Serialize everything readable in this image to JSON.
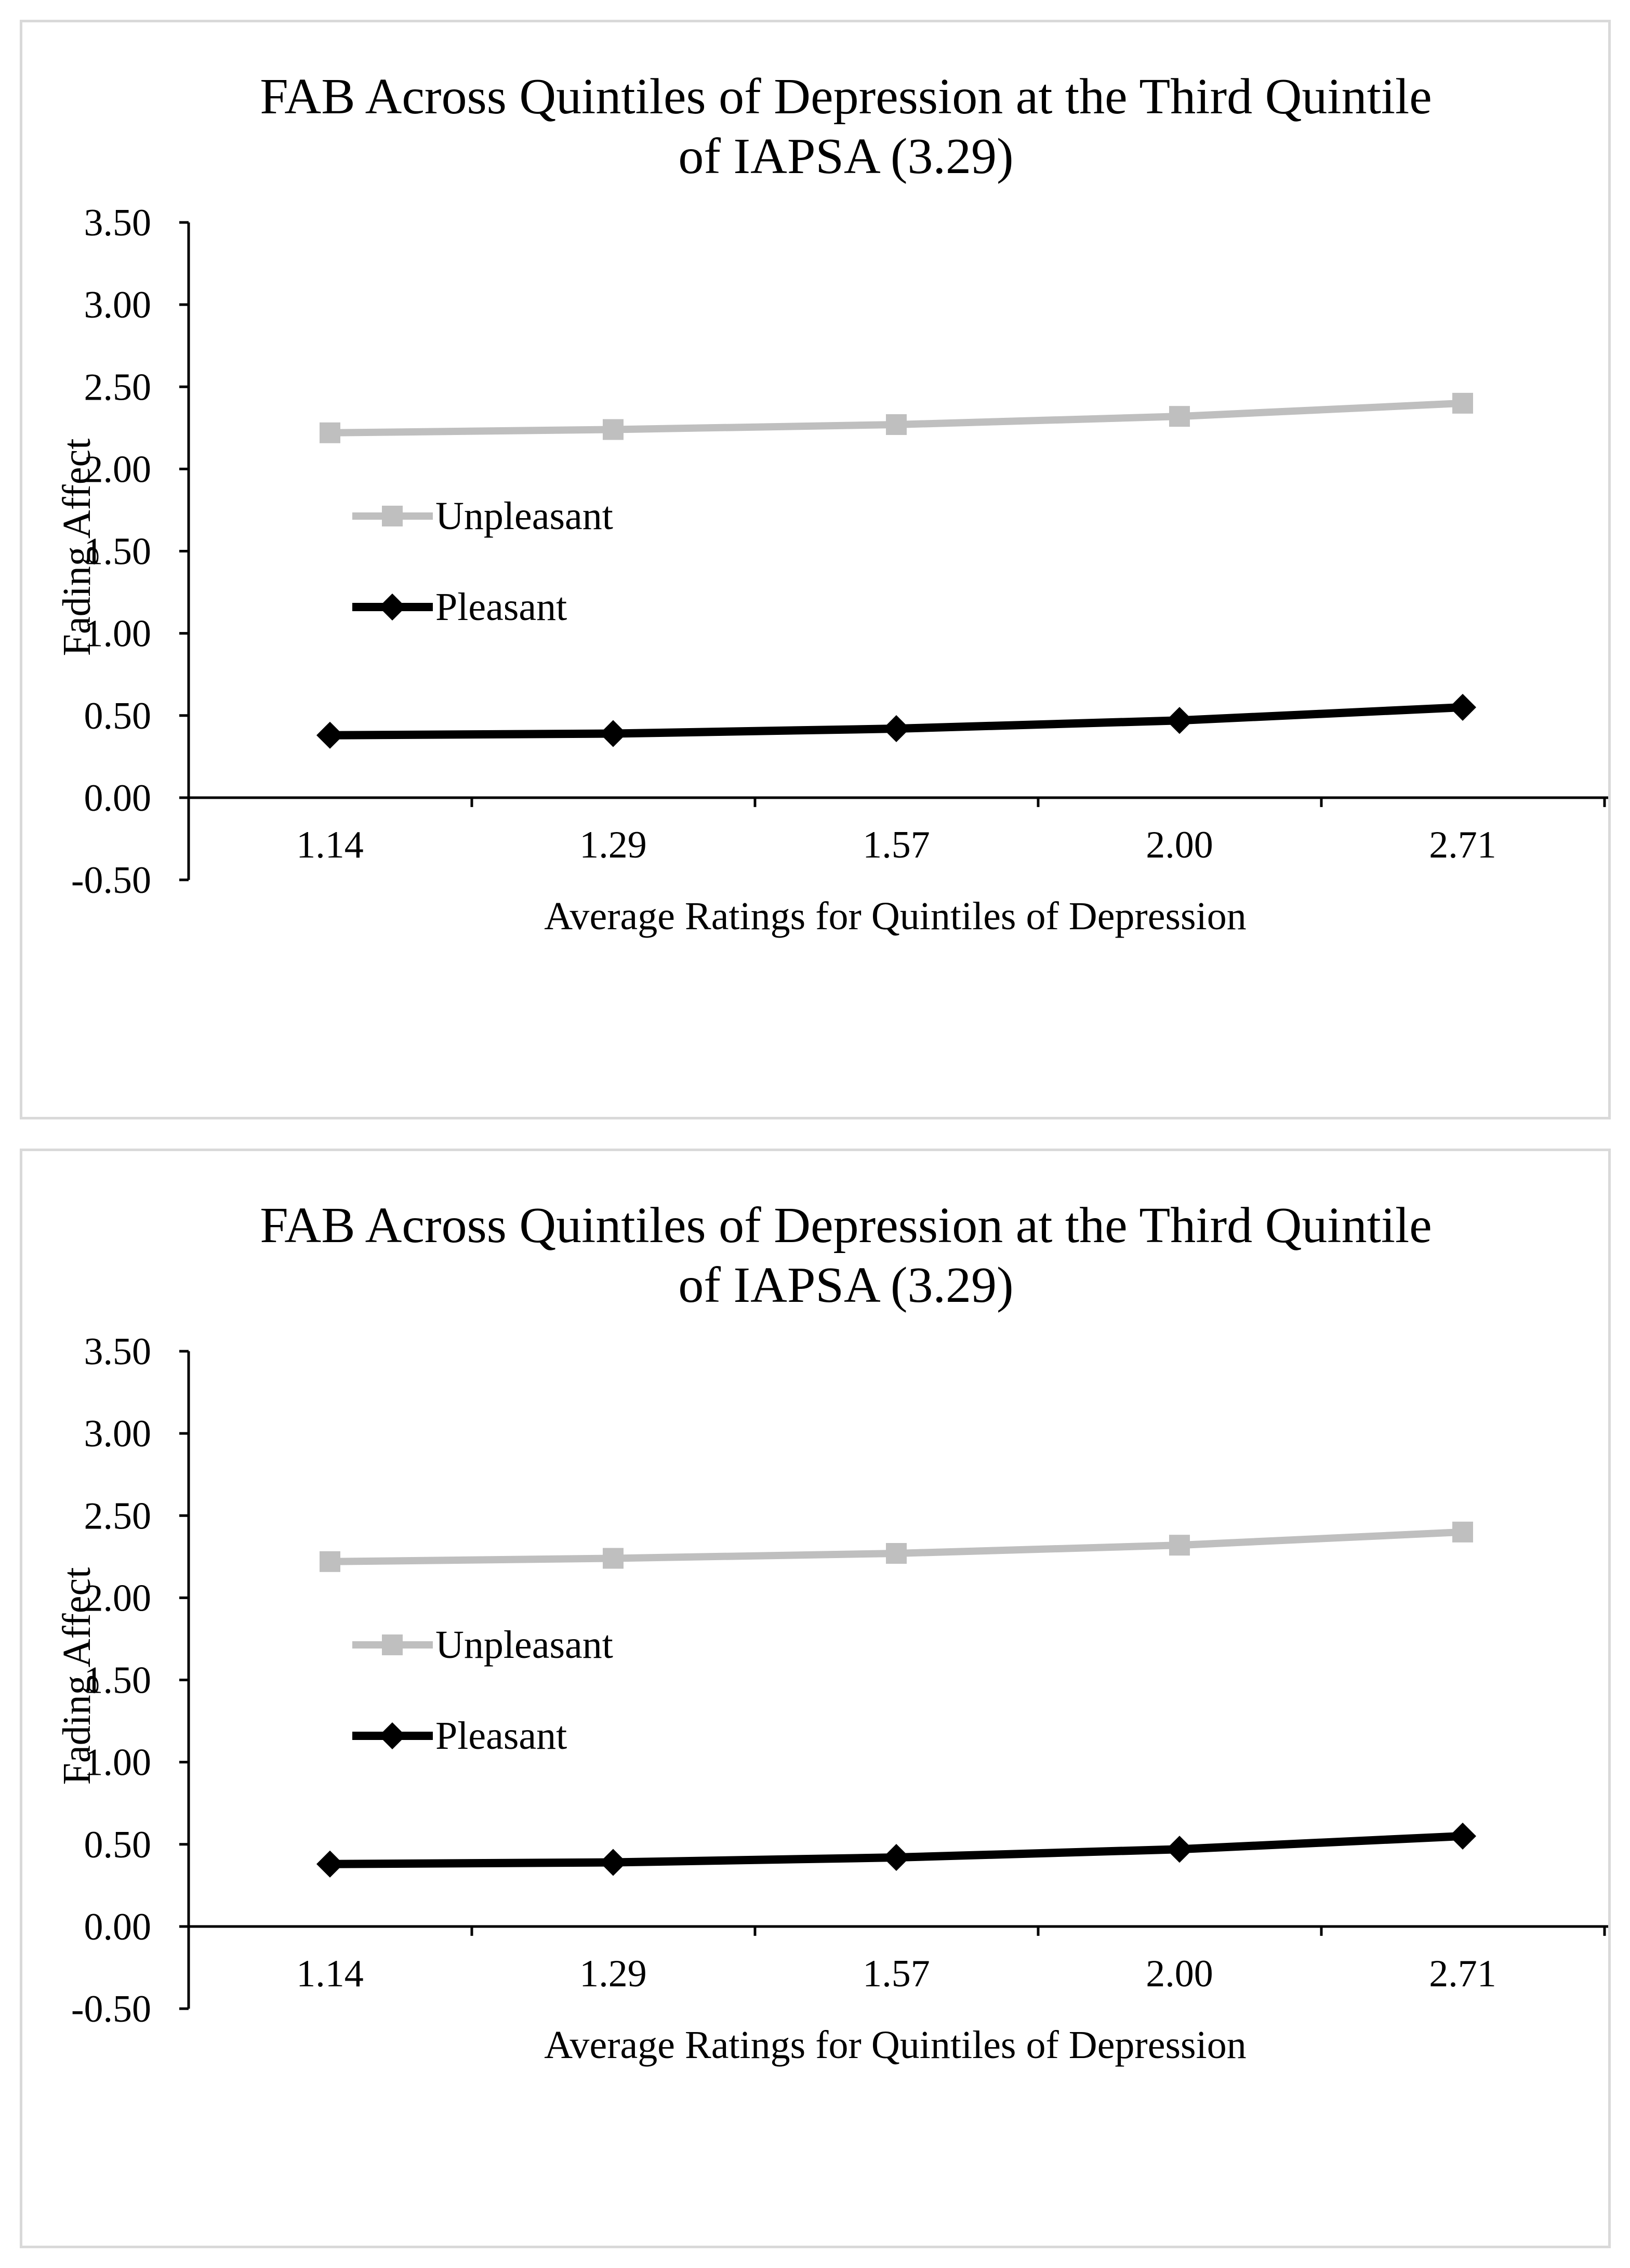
{
  "chart_data": [
    {
      "type": "line",
      "title": [
        "FAB Across Quintiles of Depression at the Third Quintile",
        "of IAPSA (3.29)"
      ],
      "xlabel": "Average Ratings for Quintiles of Depression",
      "ylabel": "Fading Affect",
      "categories": [
        "1.14",
        "1.29",
        "1.57",
        "2.00",
        "2.71"
      ],
      "y_ticks": [
        "-0.50",
        "0.00",
        "0.50",
        "1.00",
        "1.50",
        "2.00",
        "2.50",
        "3.00",
        "3.50"
      ],
      "ylim": [
        -0.5,
        3.5
      ],
      "grid": false,
      "legend_position": "left-middle",
      "series": [
        {
          "name": "Unpleasant",
          "values": [
            2.22,
            2.24,
            2.27,
            2.32,
            2.4
          ],
          "color": "#bfbfbf",
          "marker": "square"
        },
        {
          "name": "Pleasant",
          "values": [
            0.38,
            0.39,
            0.42,
            0.47,
            0.55
          ],
          "color": "#000000",
          "marker": "diamond"
        }
      ]
    },
    {
      "type": "line",
      "title": [
        "FAB Across Quintiles of Depression at the Third Quintile",
        "of IAPSA (3.29)"
      ],
      "xlabel": "Average Ratings for Quintiles of Depression",
      "ylabel": "Fading Affect",
      "categories": [
        "1.14",
        "1.29",
        "1.57",
        "2.00",
        "2.71"
      ],
      "y_ticks": [
        "-0.50",
        "0.00",
        "0.50",
        "1.00",
        "1.50",
        "2.00",
        "2.50",
        "3.00",
        "3.50"
      ],
      "ylim": [
        -0.5,
        3.5
      ],
      "grid": false,
      "legend_position": "left-middle",
      "series": [
        {
          "name": "Unpleasant",
          "values": [
            2.22,
            2.24,
            2.27,
            2.32,
            2.4
          ],
          "color": "#bfbfbf",
          "marker": "square"
        },
        {
          "name": "Pleasant",
          "values": [
            0.38,
            0.39,
            0.42,
            0.47,
            0.55
          ],
          "color": "#000000",
          "marker": "diamond"
        }
      ]
    }
  ]
}
